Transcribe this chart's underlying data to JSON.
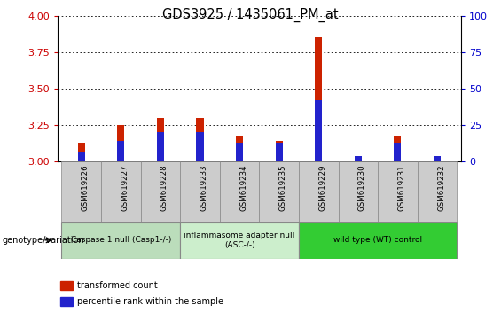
{
  "title": "GDS3925 / 1435061_PM_at",
  "samples": [
    "GSM619226",
    "GSM619227",
    "GSM619228",
    "GSM619233",
    "GSM619234",
    "GSM619235",
    "GSM619229",
    "GSM619230",
    "GSM619231",
    "GSM619232"
  ],
  "red_values": [
    3.13,
    3.25,
    3.3,
    3.3,
    3.18,
    3.14,
    3.85,
    3.02,
    3.18,
    3.02
  ],
  "blue_values_abs": [
    3.07,
    3.14,
    3.2,
    3.2,
    3.13,
    3.13,
    3.42,
    3.04,
    3.13,
    3.04
  ],
  "ylim_left": [
    3.0,
    4.0
  ],
  "ylim_right": [
    0,
    100
  ],
  "yticks_left": [
    3.0,
    3.25,
    3.5,
    3.75,
    4.0
  ],
  "yticks_right": [
    0,
    25,
    50,
    75,
    100
  ],
  "groups": [
    {
      "label": "Caspase 1 null (Casp1-/-)",
      "indices": [
        0,
        1,
        2
      ],
      "color": "#bbddbb"
    },
    {
      "label": "inflammasome adapter null\n(ASC-/-)",
      "indices": [
        3,
        4,
        5
      ],
      "color": "#cceecc"
    },
    {
      "label": "wild type (WT) control",
      "indices": [
        6,
        7,
        8,
        9
      ],
      "color": "#33cc33"
    }
  ],
  "red_color": "#cc2200",
  "blue_color": "#2222cc",
  "bar_width": 0.18,
  "blue_bar_width": 0.18,
  "grid_color": "#000000",
  "tick_bg_color": "#cccccc",
  "legend_red": "transformed count",
  "legend_blue": "percentile rank within the sample",
  "left_tick_color": "#cc0000",
  "right_tick_color": "#0000cc",
  "baseline": 3.0
}
